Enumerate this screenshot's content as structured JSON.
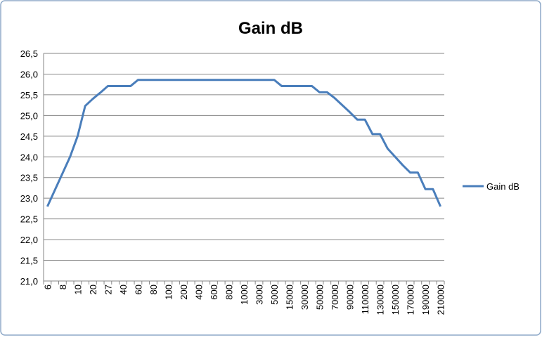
{
  "chart_data": {
    "type": "line",
    "title": "Gain dB",
    "categories": [
      "6",
      null,
      "8",
      null,
      "10",
      null,
      "20",
      null,
      "27",
      null,
      "40",
      null,
      "60",
      null,
      "80",
      null,
      "100",
      null,
      "200",
      null,
      "400",
      null,
      "600",
      null,
      "800",
      null,
      "1000",
      null,
      "3000",
      null,
      "5000",
      null,
      "15000",
      null,
      "30000",
      null,
      "50000",
      null,
      "70000",
      null,
      "90000",
      null,
      "110000",
      null,
      "130000",
      null,
      "150000",
      null,
      "170000",
      null,
      "190000",
      null,
      "210000"
    ],
    "series": [
      {
        "name": "Gain dB",
        "color": "#4a7ebb",
        "values": [
          22.8,
          23.2,
          23.6,
          24.0,
          24.5,
          25.23,
          25.4,
          25.55,
          25.71,
          25.71,
          25.71,
          25.71,
          25.86,
          25.86,
          25.86,
          25.86,
          25.86,
          25.86,
          25.86,
          25.86,
          25.86,
          25.86,
          25.86,
          25.86,
          25.86,
          25.86,
          25.86,
          25.86,
          25.86,
          25.86,
          25.86,
          25.71,
          25.71,
          25.71,
          25.71,
          25.71,
          25.56,
          25.56,
          25.42,
          25.25,
          25.08,
          24.9,
          24.9,
          24.55,
          24.55,
          24.2,
          24.0,
          23.8,
          23.62,
          23.62,
          23.22,
          23.22,
          22.8
        ]
      }
    ],
    "ylim": [
      21.0,
      26.5
    ],
    "yticks": [
      {
        "value": 21.0,
        "label": "21,0"
      },
      {
        "value": 21.5,
        "label": "21,5"
      },
      {
        "value": 22.0,
        "label": "22,0"
      },
      {
        "value": 22.5,
        "label": "22,5"
      },
      {
        "value": 23.0,
        "label": "23,0"
      },
      {
        "value": 23.5,
        "label": "23,5"
      },
      {
        "value": 24.0,
        "label": "24,0"
      },
      {
        "value": 24.5,
        "label": "24,5"
      },
      {
        "value": 25.0,
        "label": "25,0"
      },
      {
        "value": 25.5,
        "label": "25,5"
      },
      {
        "value": 26.0,
        "label": "26,0"
      },
      {
        "value": 26.5,
        "label": "26,5"
      }
    ],
    "grid": true,
    "legend": "right"
  }
}
